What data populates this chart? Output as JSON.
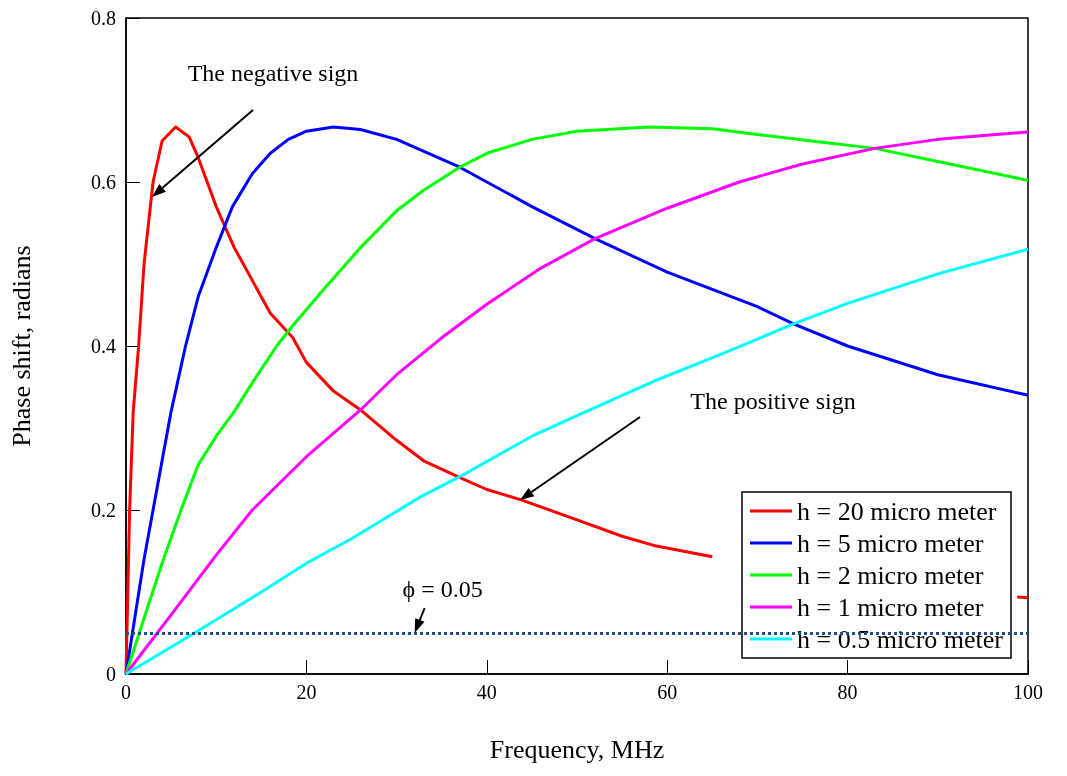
{
  "chart_data": {
    "type": "line",
    "xlabel": "Frequency, MHz",
    "ylabel": "Phase shift, radians",
    "xlim": [
      0,
      100
    ],
    "xticks": [
      0,
      20,
      40,
      60,
      80,
      100
    ],
    "ylim": [
      0,
      0.8
    ],
    "yticks": [
      0,
      0.2,
      0.4,
      0.6,
      0.8
    ],
    "grid": false,
    "legend": "bottom right",
    "marker": "none",
    "line_style": "solid",
    "series": [
      {
        "name": "h = 20 micro meter",
        "color": "#ff0000",
        "x": [
          0,
          0.4,
          0.8,
          1.4,
          2,
          3,
          4,
          5.5,
          7,
          8,
          10,
          12,
          14,
          16,
          18.5,
          20,
          23,
          26,
          30,
          33,
          36.9,
          40,
          43.9,
          50,
          55,
          58.8,
          65,
          70,
          80,
          90,
          98.8,
          100
        ],
        "values": [
          0,
          0.2,
          0.32,
          0.4,
          0.5,
          0.6,
          0.65,
          0.667,
          0.655,
          0.63,
          0.57,
          0.52,
          0.48,
          0.44,
          0.41,
          0.38,
          0.345,
          0.322,
          0.285,
          0.26,
          0.24,
          0.225,
          0.212,
          0.188,
          0.168,
          0.156,
          0.143,
          null,
          null,
          null,
          0.094,
          0.093
        ]
      },
      {
        "name": "h = 5 micro meter",
        "color": "#0000ff",
        "x": [
          0,
          1,
          2,
          3,
          4,
          5,
          6.6,
          8,
          10,
          11.8,
          14,
          16,
          18,
          20,
          23,
          26,
          30,
          37,
          45,
          52,
          60,
          70,
          74,
          80,
          90,
          100
        ],
        "values": [
          0,
          0.07,
          0.14,
          0.2,
          0.26,
          0.32,
          0.4,
          0.46,
          0.52,
          0.57,
          0.61,
          0.635,
          0.652,
          0.662,
          0.667,
          0.664,
          0.652,
          0.618,
          0.57,
          0.531,
          0.49,
          0.448,
          0.427,
          0.4,
          0.365,
          0.34
        ]
      },
      {
        "name": "h = 2 micro meter",
        "color": "#00ff00",
        "x": [
          0,
          2,
          4,
          6.1,
          8,
          10,
          12,
          14,
          16.7,
          18.5,
          22,
          26,
          30,
          33,
          37,
          40,
          45,
          50,
          58,
          65,
          70,
          76,
          83,
          90,
          100
        ],
        "values": [
          0,
          0.068,
          0.135,
          0.2,
          0.255,
          0.29,
          0.32,
          0.355,
          0.4,
          0.425,
          0.47,
          0.52,
          0.565,
          0.59,
          0.618,
          0.635,
          0.652,
          0.662,
          0.667,
          0.665,
          0.658,
          0.65,
          0.641,
          0.625,
          0.602
        ]
      },
      {
        "name": "h = 1 micro meter",
        "color": "#ff00ff",
        "x": [
          0,
          5,
          10,
          14,
          20,
          26,
          30,
          35,
          40,
          46,
          52,
          60,
          68,
          75,
          83,
          90,
          100
        ],
        "values": [
          0,
          0.072,
          0.145,
          0.2,
          0.265,
          0.322,
          0.365,
          0.41,
          0.451,
          0.495,
          0.531,
          0.568,
          0.6,
          0.622,
          0.641,
          0.652,
          0.661
        ]
      },
      {
        "name": "h = 0.5 micro meter",
        "color": "#00ffff",
        "x": [
          0,
          7.6,
          15,
          20,
          25,
          32.8,
          36.9,
          45,
          50,
          58.5,
          66,
          74,
          80,
          90,
          100
        ],
        "values": [
          0,
          0.05,
          0.1,
          0.135,
          0.165,
          0.217,
          0.24,
          0.29,
          0.315,
          0.357,
          0.39,
          0.427,
          0.452,
          0.488,
          0.518
        ]
      }
    ],
    "ref_lines": [
      {
        "axis": "y",
        "value": 0.05,
        "color": "#1f4e8c",
        "line_style": "dotted"
      }
    ],
    "annotations": [
      "The negative sign",
      "The positive sign",
      {
        "text": "ϕ = 0.05",
        "x": 32,
        "y": 0.05
      }
    ]
  }
}
